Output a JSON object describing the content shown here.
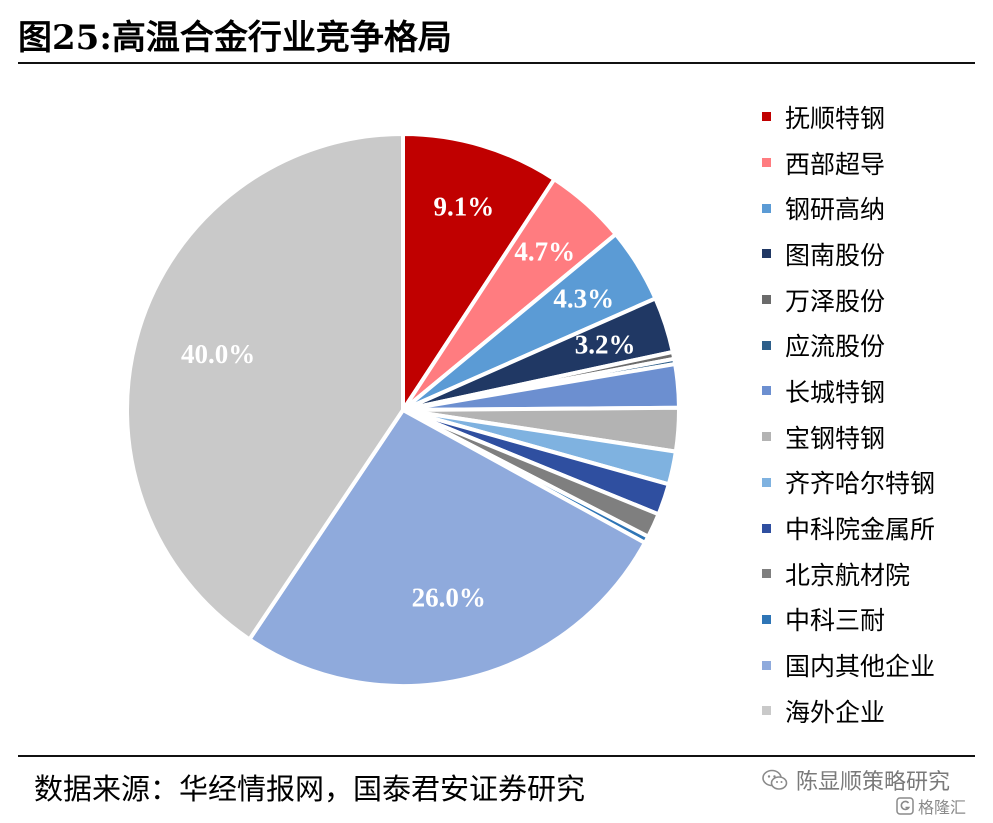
{
  "title": "图25:高温合金行业竞争格局",
  "source_text": "数据来源：华经情报网，国泰君安证券研究",
  "watermark": {
    "account": "陈显顺策略研究",
    "account_icon": "wechat-icon",
    "site": "格隆汇",
    "site_icon": "g-logo-icon"
  },
  "chart_data": {
    "type": "pie",
    "title": "",
    "start_angle_deg": 0,
    "direction": "clockwise",
    "legend_position": "right",
    "slices": [
      {
        "name": "抚顺特钢",
        "value": 9.1,
        "color": "#c00000",
        "label": "9.1%",
        "label_color": "#ffffff"
      },
      {
        "name": "西部超导",
        "value": 4.7,
        "color": "#ff7c80",
        "label": "4.7%",
        "label_color": "#ffffff"
      },
      {
        "name": "钢研高纳",
        "value": 4.3,
        "color": "#5b9bd5",
        "label": "4.3%",
        "label_color": "#ffffff"
      },
      {
        "name": "图南股份",
        "value": 3.2,
        "color": "#203864",
        "label": "3.2%",
        "label_color": "#ffffff"
      },
      {
        "name": "万泽股份",
        "value": 0.4,
        "color": "#6b6b6b",
        "label": "",
        "label_color": "#ffffff"
      },
      {
        "name": "应流股份",
        "value": 0.3,
        "color": "#2e5f8a",
        "label": "",
        "label_color": "#ffffff"
      },
      {
        "name": "长城特钢",
        "value": 2.5,
        "color": "#6c8fd0",
        "label": "",
        "label_color": "#ffffff"
      },
      {
        "name": "宝钢特钢",
        "value": 2.5,
        "color": "#b3b3b3",
        "label": "",
        "label_color": "#ffffff"
      },
      {
        "name": "齐齐哈尔特钢",
        "value": 1.9,
        "color": "#7fb2e0",
        "label": "",
        "label_color": "#ffffff"
      },
      {
        "name": "中科院金属所",
        "value": 1.8,
        "color": "#2f4fa0",
        "label": "",
        "label_color": "#ffffff"
      },
      {
        "name": "北京航材院",
        "value": 1.4,
        "color": "#7f7f7f",
        "label": "",
        "label_color": "#ffffff"
      },
      {
        "name": "中科三耐",
        "value": 0.4,
        "color": "#2e75b6",
        "label": "",
        "label_color": "#ffffff"
      },
      {
        "name": "国内其他企业",
        "value": 26.0,
        "color": "#8faadc",
        "label": "26.0%",
        "label_color": "#ffffff"
      },
      {
        "name": "海外企业",
        "value": 40.0,
        "color": "#c9c9c9",
        "label": "40.0%",
        "label_color": "#ffffff"
      }
    ]
  }
}
